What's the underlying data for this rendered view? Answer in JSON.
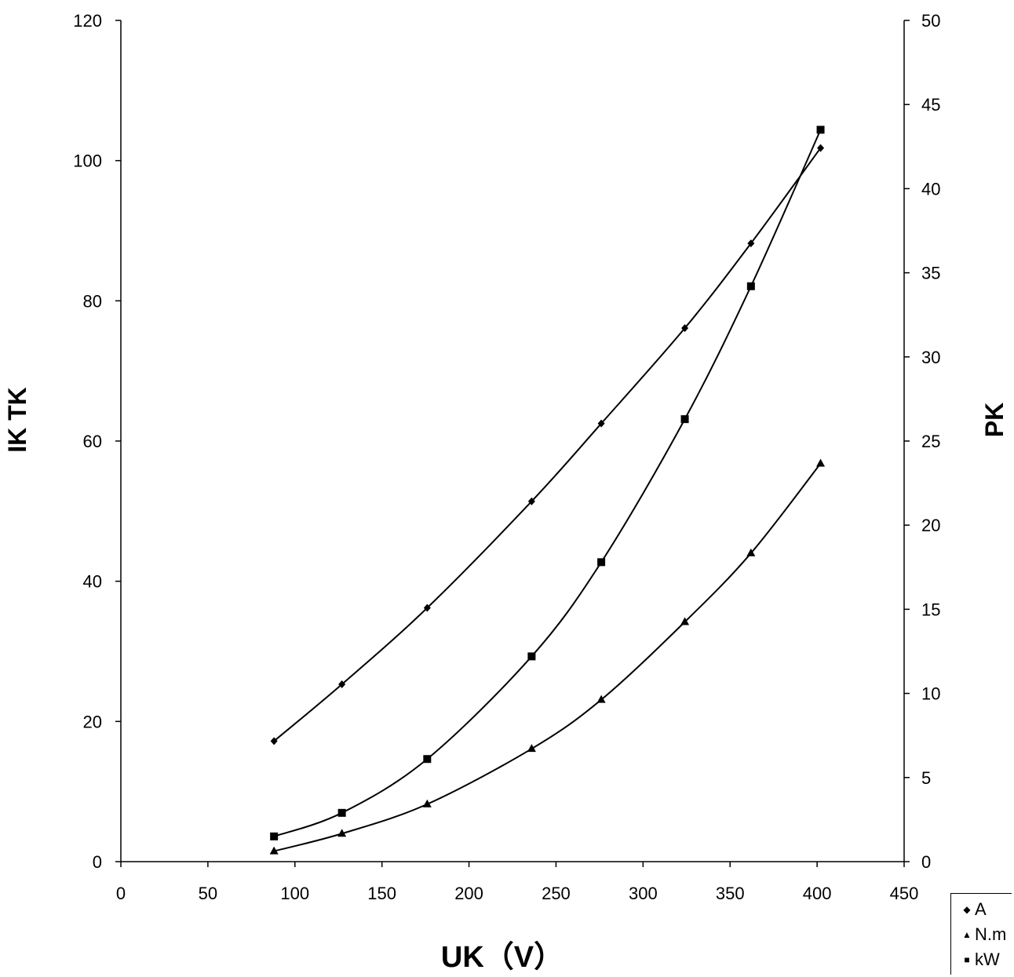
{
  "chart_data": {
    "type": "line",
    "xlabel": "UK（V）",
    "ylabel": "IK TK",
    "y2label": "PK",
    "xlim": [
      0,
      450
    ],
    "ylim": [
      0,
      120
    ],
    "y2lim": [
      0,
      50
    ],
    "x_ticks": [
      "0",
      "50",
      "100",
      "150",
      "200",
      "250",
      "300",
      "350",
      "400",
      "450"
    ],
    "y_ticks": [
      "0",
      "20",
      "40",
      "60",
      "80",
      "100",
      "120"
    ],
    "y2_ticks": [
      "0",
      "5",
      "10",
      "15",
      "20",
      "25",
      "30",
      "35",
      "40",
      "45",
      "50"
    ],
    "grid": false,
    "legend_position": "bottom-right",
    "series": [
      {
        "name": "A",
        "axis": "left",
        "marker": "diamond",
        "x": [
          88,
          127,
          176,
          236,
          276,
          324,
          362,
          402
        ],
        "y": [
          17.2,
          25.3,
          36.2,
          51.4,
          62.5,
          76.1,
          88.2,
          101.8
        ]
      },
      {
        "name": "N.m",
        "axis": "left",
        "marker": "triangle",
        "x": [
          88,
          127,
          176,
          236,
          276,
          324,
          362,
          402
        ],
        "y": [
          1.5,
          4.0,
          8.2,
          16.1,
          23.1,
          34.2,
          44.0,
          56.8
        ]
      },
      {
        "name": "kW",
        "axis": "right",
        "marker": "square",
        "x": [
          88,
          127,
          176,
          236,
          276,
          324,
          362,
          402
        ],
        "y": [
          1.5,
          2.9,
          6.1,
          12.2,
          17.8,
          26.3,
          34.2,
          43.5
        ]
      }
    ]
  }
}
